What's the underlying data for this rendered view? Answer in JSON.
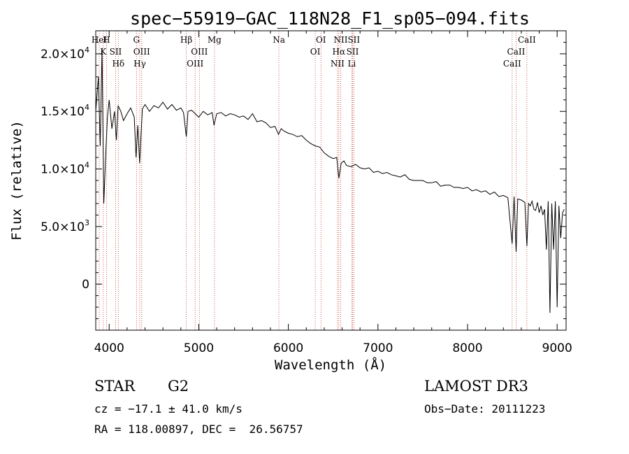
{
  "chart_data": {
    "type": "line",
    "title": "spec−55919−GAC_118N28_F1_sp05−094.fits",
    "xlabel": "Wavelength (Å)",
    "ylabel": "Flux (relative)",
    "xlim": [
      3850,
      9100
    ],
    "ylim": [
      -4000,
      22000
    ],
    "x_ticks": [
      {
        "value": 4000,
        "label": "4000"
      },
      {
        "value": 5000,
        "label": "5000"
      },
      {
        "value": 6000,
        "label": "6000"
      },
      {
        "value": 7000,
        "label": "7000"
      },
      {
        "value": 8000,
        "label": "8000"
      },
      {
        "value": 9000,
        "label": "9000"
      }
    ],
    "y_ticks": [
      {
        "value": 0,
        "mant": "0",
        "exp": ""
      },
      {
        "value": 5000,
        "mant": "5.0×10",
        "exp": "3"
      },
      {
        "value": 10000,
        "mant": "1.0×10",
        "exp": "4"
      },
      {
        "value": 15000,
        "mant": "1.5×10",
        "exp": "4"
      },
      {
        "value": 20000,
        "mant": "2.0×10",
        "exp": "4"
      }
    ],
    "series": [
      {
        "name": "flux",
        "x": [
          3850,
          3880,
          3900,
          3920,
          3940,
          3960,
          3980,
          4000,
          4030,
          4060,
          4080,
          4100,
          4130,
          4160,
          4200,
          4240,
          4280,
          4300,
          4320,
          4340,
          4370,
          4400,
          4450,
          4500,
          4550,
          4600,
          4650,
          4700,
          4750,
          4800,
          4830,
          4861,
          4880,
          4920,
          4960,
          5000,
          5050,
          5100,
          5150,
          5170,
          5200,
          5250,
          5300,
          5350,
          5400,
          5450,
          5500,
          5550,
          5600,
          5650,
          5700,
          5750,
          5800,
          5850,
          5890,
          5920,
          5950,
          6000,
          6050,
          6100,
          6150,
          6200,
          6250,
          6300,
          6350,
          6400,
          6450,
          6500,
          6540,
          6563,
          6590,
          6620,
          6650,
          6700,
          6750,
          6800,
          6850,
          6900,
          6950,
          7000,
          7050,
          7100,
          7150,
          7200,
          7250,
          7300,
          7350,
          7400,
          7450,
          7500,
          7550,
          7600,
          7650,
          7700,
          7750,
          7800,
          7850,
          7900,
          7950,
          8000,
          8050,
          8100,
          8150,
          8200,
          8250,
          8300,
          8350,
          8400,
          8450,
          8498,
          8520,
          8542,
          8560,
          8600,
          8640,
          8662,
          8680,
          8700,
          8720,
          8740,
          8760,
          8780,
          8800,
          8820,
          8840,
          8860,
          8880,
          8900,
          8920,
          8940,
          8960,
          8980,
          9000,
          9020,
          9040,
          9060,
          9080
        ],
        "y": [
          15000,
          18000,
          12000,
          20500,
          7000,
          11000,
          14500,
          16000,
          13500,
          15000,
          12500,
          15500,
          15000,
          14200,
          14800,
          15300,
          14500,
          11000,
          13800,
          10500,
          15200,
          15600,
          15000,
          15500,
          15300,
          15800,
          15200,
          15600,
          15100,
          15300,
          14900,
          12800,
          15000,
          15100,
          14800,
          14500,
          15000,
          14700,
          14900,
          13800,
          14800,
          14900,
          14600,
          14800,
          14700,
          14500,
          14600,
          14300,
          14800,
          14100,
          14200,
          14000,
          13600,
          13700,
          13000,
          13500,
          13300,
          13100,
          13000,
          12800,
          12900,
          12500,
          12200,
          12000,
          11900,
          11400,
          11100,
          10900,
          11000,
          9200,
          10500,
          10700,
          10300,
          10200,
          10400,
          10100,
          10000,
          10100,
          9700,
          9800,
          9600,
          9700,
          9500,
          9400,
          9300,
          9500,
          9100,
          9000,
          9000,
          9000,
          8800,
          8800,
          8900,
          8500,
          8600,
          8600,
          8400,
          8400,
          8300,
          8400,
          8100,
          8200,
          8000,
          8100,
          7800,
          8000,
          7600,
          7700,
          7500,
          3500,
          7600,
          2800,
          7400,
          7300,
          7100,
          3300,
          7000,
          6800,
          7200,
          6500,
          6400,
          7100,
          6200,
          6800,
          6000,
          6500,
          3000,
          7200,
          -2500,
          7000,
          3000,
          7200,
          -2000,
          6800,
          4000,
          6200,
          6500
        ]
      }
    ],
    "lines": [
      {
        "name": "H",
        "x": 3970
      },
      {
        "name": "K",
        "x": 3934
      },
      {
        "name": "Hδ",
        "x": 4102
      },
      {
        "name": "HeI",
        "x": 3889
      },
      {
        "name": "SII",
        "x": 4072
      },
      {
        "name": "G",
        "x": 4305
      },
      {
        "name": "OIII",
        "x": 4363
      },
      {
        "name": "Hγ",
        "x": 4341
      },
      {
        "name": "Hβ",
        "x": 4861
      },
      {
        "name": "OIII",
        "x": 5007
      },
      {
        "name": "OIII",
        "x": 4959
      },
      {
        "name": "Mg",
        "x": 5175
      },
      {
        "name": "Na",
        "x": 5894
      },
      {
        "name": "OI",
        "x": 6364
      },
      {
        "name": "OI",
        "x": 6300
      },
      {
        "name": "NII",
        "x": 6584
      },
      {
        "name": "Hα",
        "x": 6563
      },
      {
        "name": "NII",
        "x": 6548
      },
      {
        "name": "SII",
        "x": 6731
      },
      {
        "name": "SII",
        "x": 6717
      },
      {
        "name": "Li",
        "x": 6708
      },
      {
        "name": "CaII",
        "x": 8662
      },
      {
        "name": "CaII",
        "x": 8542
      },
      {
        "name": "CaII",
        "x": 8498
      }
    ]
  },
  "info": {
    "object_class": "STAR",
    "subclass": "G2",
    "survey": "LAMOST DR3",
    "cz": "cz = −17.1 ± 41.0 km/s",
    "obs_date": "Obs−Date: 20111223",
    "coords": "RA = 118.00897, DEC =  26.56757"
  }
}
